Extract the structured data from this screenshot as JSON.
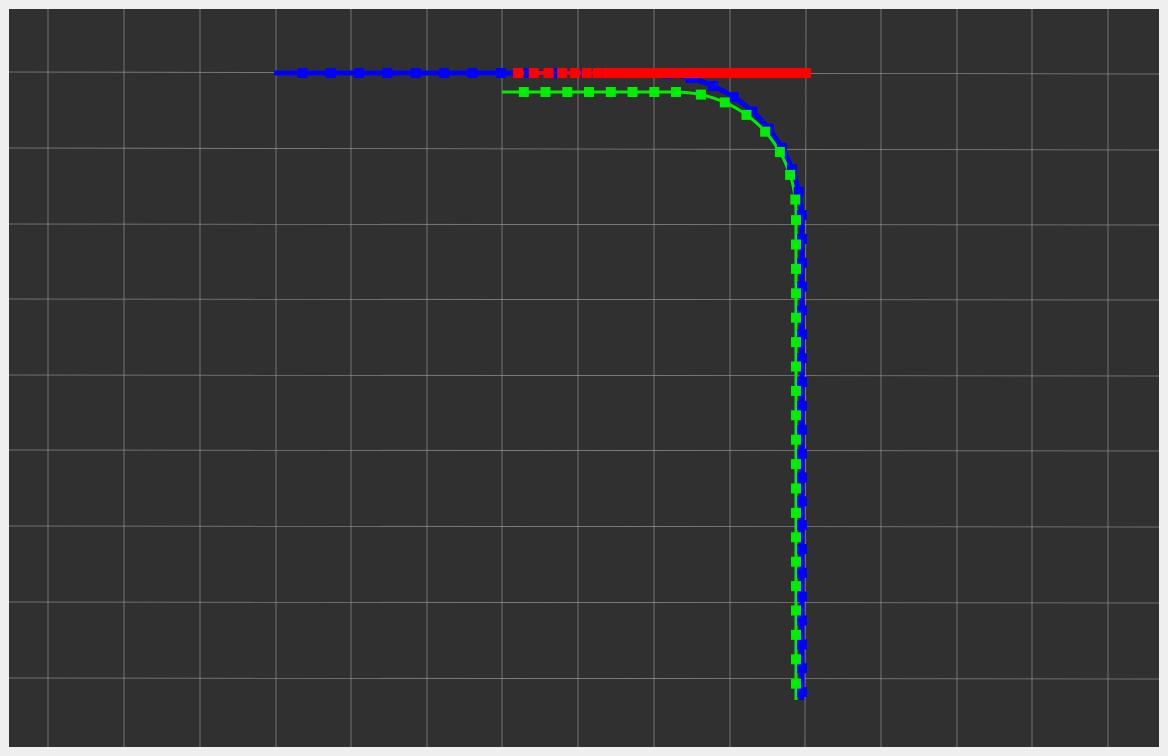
{
  "viewer": {
    "background_color": "#303030",
    "frame_color": "#efefef",
    "grid_color": "#a0a0a0"
  },
  "paths": [
    {
      "id": "blue-path",
      "color": "#0000ff"
    },
    {
      "id": "red-path",
      "color": "#ff0000"
    },
    {
      "id": "green-path",
      "color": "#00ee00"
    }
  ]
}
